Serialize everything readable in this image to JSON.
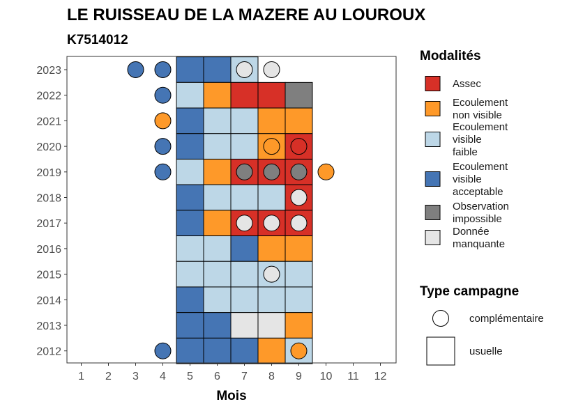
{
  "chart_data": {
    "type": "heatmap",
    "title": "LE RUISSEAU DE LA MAZERE AU LOUROUX",
    "subtitle": "K7514012",
    "xlabel": "Mois",
    "ylabel": "",
    "x_ticks": [
      "1",
      "2",
      "3",
      "4",
      "5",
      "6",
      "7",
      "8",
      "9",
      "10",
      "11",
      "12"
    ],
    "y_ticks": [
      "2023",
      "2022",
      "2021",
      "2020",
      "2019",
      "2018",
      "2017",
      "2016",
      "2015",
      "2014",
      "2013",
      "2012"
    ],
    "xlim": [
      0.5,
      12.5
    ],
    "grid": false,
    "legend_position": "right",
    "modalites_legend": {
      "title": "Modalités",
      "items": [
        {
          "key": "assec",
          "label_lines": [
            "Assec"
          ],
          "color": "#d73027"
        },
        {
          "key": "nonvisible",
          "label_lines": [
            "Ecoulement",
            "non visible"
          ],
          "color": "#fe9929"
        },
        {
          "key": "faible",
          "label_lines": [
            "Ecoulement",
            "visible",
            "faible"
          ],
          "color": "#bdd7e7"
        },
        {
          "key": "acceptable",
          "label_lines": [
            "Ecoulement",
            "visible",
            "acceptable"
          ],
          "color": "#4575b4"
        },
        {
          "key": "impossible",
          "label_lines": [
            "Observation",
            "impossible"
          ],
          "color": "#7f7f7f"
        },
        {
          "key": "manquante",
          "label_lines": [
            "Donnée",
            "manquante"
          ],
          "color": "#e5e5e5"
        }
      ]
    },
    "campagne_legend": {
      "title": "Type campagne",
      "items": [
        {
          "key": "complementaire",
          "label": "complémentaire",
          "shape": "circle"
        },
        {
          "key": "usuelle",
          "label": "usuelle",
          "shape": "square"
        }
      ]
    },
    "usuelle_cells": [
      {
        "year": "2023",
        "month": 5,
        "value": "acceptable"
      },
      {
        "year": "2023",
        "month": 6,
        "value": "acceptable"
      },
      {
        "year": "2023",
        "month": 7,
        "value": "faible"
      },
      {
        "year": "2022",
        "month": 5,
        "value": "faible"
      },
      {
        "year": "2022",
        "month": 6,
        "value": "nonvisible"
      },
      {
        "year": "2022",
        "month": 7,
        "value": "assec"
      },
      {
        "year": "2022",
        "month": 8,
        "value": "assec"
      },
      {
        "year": "2022",
        "month": 9,
        "value": "impossible"
      },
      {
        "year": "2021",
        "month": 5,
        "value": "acceptable"
      },
      {
        "year": "2021",
        "month": 6,
        "value": "faible"
      },
      {
        "year": "2021",
        "month": 7,
        "value": "faible"
      },
      {
        "year": "2021",
        "month": 8,
        "value": "nonvisible"
      },
      {
        "year": "2021",
        "month": 9,
        "value": "nonvisible"
      },
      {
        "year": "2020",
        "month": 5,
        "value": "acceptable"
      },
      {
        "year": "2020",
        "month": 6,
        "value": "faible"
      },
      {
        "year": "2020",
        "month": 7,
        "value": "faible"
      },
      {
        "year": "2020",
        "month": 8,
        "value": "nonvisible"
      },
      {
        "year": "2020",
        "month": 9,
        "value": "assec"
      },
      {
        "year": "2019",
        "month": 5,
        "value": "faible"
      },
      {
        "year": "2019",
        "month": 6,
        "value": "nonvisible"
      },
      {
        "year": "2019",
        "month": 7,
        "value": "assec"
      },
      {
        "year": "2019",
        "month": 8,
        "value": "assec"
      },
      {
        "year": "2019",
        "month": 9,
        "value": "assec"
      },
      {
        "year": "2018",
        "month": 5,
        "value": "acceptable"
      },
      {
        "year": "2018",
        "month": 6,
        "value": "faible"
      },
      {
        "year": "2018",
        "month": 7,
        "value": "faible"
      },
      {
        "year": "2018",
        "month": 8,
        "value": "faible"
      },
      {
        "year": "2018",
        "month": 9,
        "value": "assec"
      },
      {
        "year": "2017",
        "month": 5,
        "value": "acceptable"
      },
      {
        "year": "2017",
        "month": 6,
        "value": "nonvisible"
      },
      {
        "year": "2017",
        "month": 7,
        "value": "assec"
      },
      {
        "year": "2017",
        "month": 8,
        "value": "assec"
      },
      {
        "year": "2017",
        "month": 9,
        "value": "assec"
      },
      {
        "year": "2016",
        "month": 5,
        "value": "faible"
      },
      {
        "year": "2016",
        "month": 6,
        "value": "faible"
      },
      {
        "year": "2016",
        "month": 7,
        "value": "acceptable"
      },
      {
        "year": "2016",
        "month": 8,
        "value": "nonvisible"
      },
      {
        "year": "2016",
        "month": 9,
        "value": "nonvisible"
      },
      {
        "year": "2015",
        "month": 5,
        "value": "faible"
      },
      {
        "year": "2015",
        "month": 6,
        "value": "faible"
      },
      {
        "year": "2015",
        "month": 7,
        "value": "faible"
      },
      {
        "year": "2015",
        "month": 8,
        "value": "faible"
      },
      {
        "year": "2015",
        "month": 9,
        "value": "faible"
      },
      {
        "year": "2014",
        "month": 5,
        "value": "acceptable"
      },
      {
        "year": "2014",
        "month": 6,
        "value": "faible"
      },
      {
        "year": "2014",
        "month": 7,
        "value": "faible"
      },
      {
        "year": "2014",
        "month": 8,
        "value": "faible"
      },
      {
        "year": "2014",
        "month": 9,
        "value": "faible"
      },
      {
        "year": "2013",
        "month": 5,
        "value": "acceptable"
      },
      {
        "year": "2013",
        "month": 6,
        "value": "acceptable"
      },
      {
        "year": "2013",
        "month": 7,
        "value": "manquante"
      },
      {
        "year": "2013",
        "month": 8,
        "value": "manquante"
      },
      {
        "year": "2013",
        "month": 9,
        "value": "nonvisible"
      },
      {
        "year": "2012",
        "month": 5,
        "value": "acceptable"
      },
      {
        "year": "2012",
        "month": 6,
        "value": "acceptable"
      },
      {
        "year": "2012",
        "month": 7,
        "value": "acceptable"
      },
      {
        "year": "2012",
        "month": 8,
        "value": "nonvisible"
      },
      {
        "year": "2012",
        "month": 9,
        "value": "faible"
      }
    ],
    "complementaire_points": [
      {
        "year": "2023",
        "month": 3,
        "value": "acceptable"
      },
      {
        "year": "2023",
        "month": 4,
        "value": "acceptable"
      },
      {
        "year": "2023",
        "month": 7,
        "value": "manquante"
      },
      {
        "year": "2023",
        "month": 8,
        "value": "manquante"
      },
      {
        "year": "2022",
        "month": 4,
        "value": "acceptable"
      },
      {
        "year": "2021",
        "month": 4,
        "value": "nonvisible"
      },
      {
        "year": "2020",
        "month": 4,
        "value": "acceptable"
      },
      {
        "year": "2020",
        "month": 8,
        "value": "nonvisible"
      },
      {
        "year": "2020",
        "month": 9,
        "value": "assec"
      },
      {
        "year": "2019",
        "month": 4,
        "value": "acceptable"
      },
      {
        "year": "2019",
        "month": 7,
        "value": "impossible"
      },
      {
        "year": "2019",
        "month": 8,
        "value": "impossible"
      },
      {
        "year": "2019",
        "month": 9,
        "value": "impossible"
      },
      {
        "year": "2019",
        "month": 10,
        "value": "nonvisible"
      },
      {
        "year": "2018",
        "month": 9,
        "value": "manquante"
      },
      {
        "year": "2017",
        "month": 7,
        "value": "manquante"
      },
      {
        "year": "2017",
        "month": 8,
        "value": "manquante"
      },
      {
        "year": "2017",
        "month": 9,
        "value": "manquante"
      },
      {
        "year": "2015",
        "month": 8,
        "value": "manquante"
      },
      {
        "year": "2012",
        "month": 4,
        "value": "acceptable"
      },
      {
        "year": "2012",
        "month": 9,
        "value": "nonvisible"
      }
    ]
  }
}
